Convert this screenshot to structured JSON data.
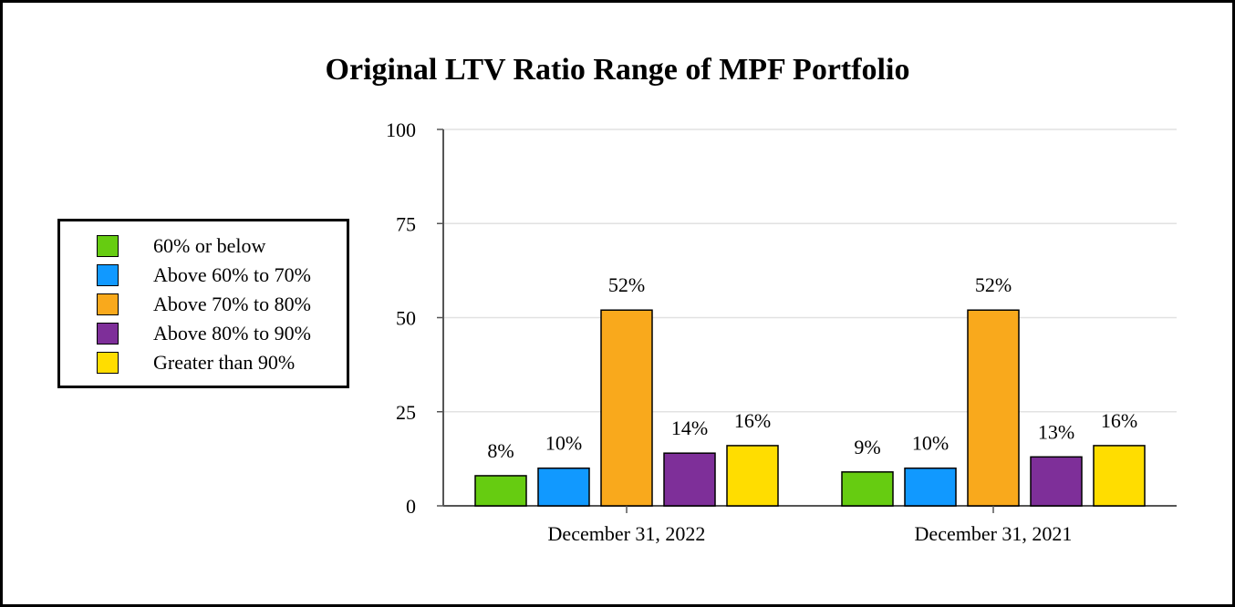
{
  "chart_data": {
    "type": "bar",
    "title": "Original LTV Ratio Range of MPF Portfolio",
    "categories": [
      "December 31, 2022",
      "December 31, 2021"
    ],
    "series": [
      {
        "name": "60% or below",
        "color": "#66cc11",
        "values": [
          8,
          9
        ],
        "labels": [
          "8%",
          "9%"
        ]
      },
      {
        "name": "Above 60% to 70%",
        "color": "#1199ff",
        "values": [
          10,
          10
        ],
        "labels": [
          "10%",
          "10%"
        ]
      },
      {
        "name": "Above 70% to 80%",
        "color": "#f9a91c",
        "values": [
          52,
          52
        ],
        "labels": [
          "52%",
          "52%"
        ]
      },
      {
        "name": "Above 80% to 90%",
        "color": "#7e2f99",
        "values": [
          14,
          13
        ],
        "labels": [
          "14%",
          "13%"
        ]
      },
      {
        "name": "Greater than 90%",
        "color": "#ffdd00",
        "values": [
          16,
          16
        ],
        "labels": [
          "16%",
          "16%"
        ]
      }
    ],
    "ylim": [
      0,
      100
    ],
    "yticks": [
      "0",
      "25",
      "50",
      "75",
      "100"
    ],
    "xlabel": "",
    "ylabel": "",
    "grid": true,
    "legend_position": "left"
  }
}
